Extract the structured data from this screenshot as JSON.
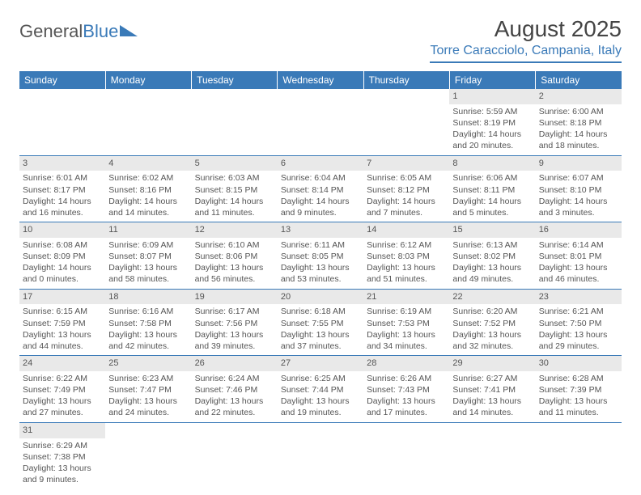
{
  "logo": {
    "text1": "General",
    "text2": "Blue"
  },
  "title": "August 2025",
  "location": "Torre Caracciolo, Campania, Italy",
  "colors": {
    "header_bg": "#3a7ab8",
    "header_text": "#ffffff",
    "daynum_bg": "#e9e9e9",
    "cell_text": "#555555",
    "rule": "#3a7ab8"
  },
  "day_headers": [
    "Sunday",
    "Monday",
    "Tuesday",
    "Wednesday",
    "Thursday",
    "Friday",
    "Saturday"
  ],
  "weeks": [
    [
      null,
      null,
      null,
      null,
      null,
      {
        "n": "1",
        "sr": "Sunrise: 5:59 AM",
        "ss": "Sunset: 8:19 PM",
        "d1": "Daylight: 14 hours",
        "d2": "and 20 minutes."
      },
      {
        "n": "2",
        "sr": "Sunrise: 6:00 AM",
        "ss": "Sunset: 8:18 PM",
        "d1": "Daylight: 14 hours",
        "d2": "and 18 minutes."
      }
    ],
    [
      {
        "n": "3",
        "sr": "Sunrise: 6:01 AM",
        "ss": "Sunset: 8:17 PM",
        "d1": "Daylight: 14 hours",
        "d2": "and 16 minutes."
      },
      {
        "n": "4",
        "sr": "Sunrise: 6:02 AM",
        "ss": "Sunset: 8:16 PM",
        "d1": "Daylight: 14 hours",
        "d2": "and 14 minutes."
      },
      {
        "n": "5",
        "sr": "Sunrise: 6:03 AM",
        "ss": "Sunset: 8:15 PM",
        "d1": "Daylight: 14 hours",
        "d2": "and 11 minutes."
      },
      {
        "n": "6",
        "sr": "Sunrise: 6:04 AM",
        "ss": "Sunset: 8:14 PM",
        "d1": "Daylight: 14 hours",
        "d2": "and 9 minutes."
      },
      {
        "n": "7",
        "sr": "Sunrise: 6:05 AM",
        "ss": "Sunset: 8:12 PM",
        "d1": "Daylight: 14 hours",
        "d2": "and 7 minutes."
      },
      {
        "n": "8",
        "sr": "Sunrise: 6:06 AM",
        "ss": "Sunset: 8:11 PM",
        "d1": "Daylight: 14 hours",
        "d2": "and 5 minutes."
      },
      {
        "n": "9",
        "sr": "Sunrise: 6:07 AM",
        "ss": "Sunset: 8:10 PM",
        "d1": "Daylight: 14 hours",
        "d2": "and 3 minutes."
      }
    ],
    [
      {
        "n": "10",
        "sr": "Sunrise: 6:08 AM",
        "ss": "Sunset: 8:09 PM",
        "d1": "Daylight: 14 hours",
        "d2": "and 0 minutes."
      },
      {
        "n": "11",
        "sr": "Sunrise: 6:09 AM",
        "ss": "Sunset: 8:07 PM",
        "d1": "Daylight: 13 hours",
        "d2": "and 58 minutes."
      },
      {
        "n": "12",
        "sr": "Sunrise: 6:10 AM",
        "ss": "Sunset: 8:06 PM",
        "d1": "Daylight: 13 hours",
        "d2": "and 56 minutes."
      },
      {
        "n": "13",
        "sr": "Sunrise: 6:11 AM",
        "ss": "Sunset: 8:05 PM",
        "d1": "Daylight: 13 hours",
        "d2": "and 53 minutes."
      },
      {
        "n": "14",
        "sr": "Sunrise: 6:12 AM",
        "ss": "Sunset: 8:03 PM",
        "d1": "Daylight: 13 hours",
        "d2": "and 51 minutes."
      },
      {
        "n": "15",
        "sr": "Sunrise: 6:13 AM",
        "ss": "Sunset: 8:02 PM",
        "d1": "Daylight: 13 hours",
        "d2": "and 49 minutes."
      },
      {
        "n": "16",
        "sr": "Sunrise: 6:14 AM",
        "ss": "Sunset: 8:01 PM",
        "d1": "Daylight: 13 hours",
        "d2": "and 46 minutes."
      }
    ],
    [
      {
        "n": "17",
        "sr": "Sunrise: 6:15 AM",
        "ss": "Sunset: 7:59 PM",
        "d1": "Daylight: 13 hours",
        "d2": "and 44 minutes."
      },
      {
        "n": "18",
        "sr": "Sunrise: 6:16 AM",
        "ss": "Sunset: 7:58 PM",
        "d1": "Daylight: 13 hours",
        "d2": "and 42 minutes."
      },
      {
        "n": "19",
        "sr": "Sunrise: 6:17 AM",
        "ss": "Sunset: 7:56 PM",
        "d1": "Daylight: 13 hours",
        "d2": "and 39 minutes."
      },
      {
        "n": "20",
        "sr": "Sunrise: 6:18 AM",
        "ss": "Sunset: 7:55 PM",
        "d1": "Daylight: 13 hours",
        "d2": "and 37 minutes."
      },
      {
        "n": "21",
        "sr": "Sunrise: 6:19 AM",
        "ss": "Sunset: 7:53 PM",
        "d1": "Daylight: 13 hours",
        "d2": "and 34 minutes."
      },
      {
        "n": "22",
        "sr": "Sunrise: 6:20 AM",
        "ss": "Sunset: 7:52 PM",
        "d1": "Daylight: 13 hours",
        "d2": "and 32 minutes."
      },
      {
        "n": "23",
        "sr": "Sunrise: 6:21 AM",
        "ss": "Sunset: 7:50 PM",
        "d1": "Daylight: 13 hours",
        "d2": "and 29 minutes."
      }
    ],
    [
      {
        "n": "24",
        "sr": "Sunrise: 6:22 AM",
        "ss": "Sunset: 7:49 PM",
        "d1": "Daylight: 13 hours",
        "d2": "and 27 minutes."
      },
      {
        "n": "25",
        "sr": "Sunrise: 6:23 AM",
        "ss": "Sunset: 7:47 PM",
        "d1": "Daylight: 13 hours",
        "d2": "and 24 minutes."
      },
      {
        "n": "26",
        "sr": "Sunrise: 6:24 AM",
        "ss": "Sunset: 7:46 PM",
        "d1": "Daylight: 13 hours",
        "d2": "and 22 minutes."
      },
      {
        "n": "27",
        "sr": "Sunrise: 6:25 AM",
        "ss": "Sunset: 7:44 PM",
        "d1": "Daylight: 13 hours",
        "d2": "and 19 minutes."
      },
      {
        "n": "28",
        "sr": "Sunrise: 6:26 AM",
        "ss": "Sunset: 7:43 PM",
        "d1": "Daylight: 13 hours",
        "d2": "and 17 minutes."
      },
      {
        "n": "29",
        "sr": "Sunrise: 6:27 AM",
        "ss": "Sunset: 7:41 PM",
        "d1": "Daylight: 13 hours",
        "d2": "and 14 minutes."
      },
      {
        "n": "30",
        "sr": "Sunrise: 6:28 AM",
        "ss": "Sunset: 7:39 PM",
        "d1": "Daylight: 13 hours",
        "d2": "and 11 minutes."
      }
    ],
    [
      {
        "n": "31",
        "sr": "Sunrise: 6:29 AM",
        "ss": "Sunset: 7:38 PM",
        "d1": "Daylight: 13 hours",
        "d2": "and 9 minutes."
      },
      null,
      null,
      null,
      null,
      null,
      null
    ]
  ]
}
